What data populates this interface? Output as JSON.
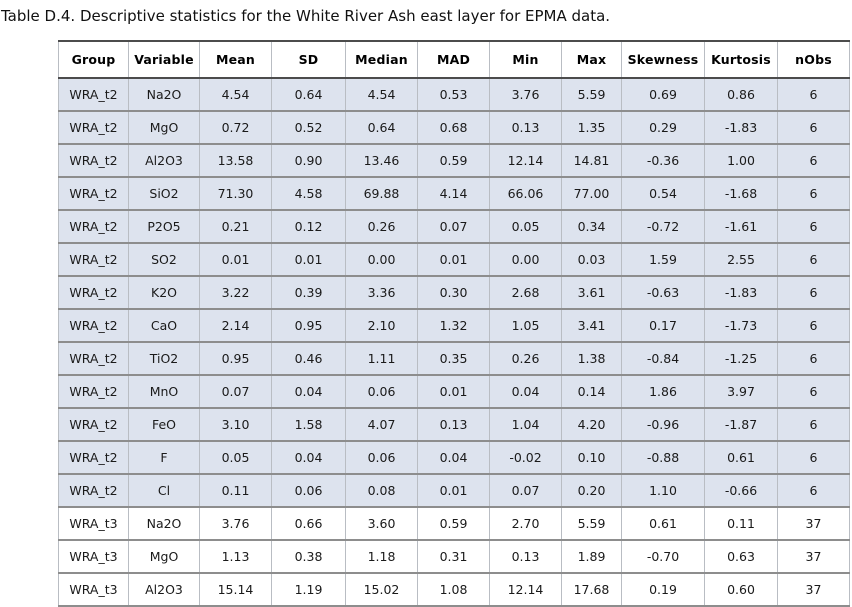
{
  "title": "Table D.4. Descriptive statistics for the White River Ash east layer for EPMA data.",
  "colors": {
    "stripe_row_bg": "#dde3ee",
    "plain_row_bg": "#ffffff",
    "header_rule": "#4c4c4c",
    "row_rule": "#8d8d8d",
    "column_rule": "#b9bdc3",
    "text": "#1a1a1a"
  },
  "table": {
    "columns": [
      "Group",
      "Variable",
      "Mean",
      "SD",
      "Median",
      "MAD",
      "Min",
      "Max",
      "Skewness",
      "Kurtosis",
      "nObs"
    ],
    "rows": [
      [
        "WRA_t2",
        "Na2O",
        "4.54",
        "0.64",
        "4.54",
        "0.53",
        "3.76",
        "5.59",
        "0.69",
        "0.86",
        "6"
      ],
      [
        "WRA_t2",
        "MgO",
        "0.72",
        "0.52",
        "0.64",
        "0.68",
        "0.13",
        "1.35",
        "0.29",
        "-1.83",
        "6"
      ],
      [
        "WRA_t2",
        "Al2O3",
        "13.58",
        "0.90",
        "13.46",
        "0.59",
        "12.14",
        "14.81",
        "-0.36",
        "1.00",
        "6"
      ],
      [
        "WRA_t2",
        "SiO2",
        "71.30",
        "4.58",
        "69.88",
        "4.14",
        "66.06",
        "77.00",
        "0.54",
        "-1.68",
        "6"
      ],
      [
        "WRA_t2",
        "P2O5",
        "0.21",
        "0.12",
        "0.26",
        "0.07",
        "0.05",
        "0.34",
        "-0.72",
        "-1.61",
        "6"
      ],
      [
        "WRA_t2",
        "SO2",
        "0.01",
        "0.01",
        "0.00",
        "0.01",
        "0.00",
        "0.03",
        "1.59",
        "2.55",
        "6"
      ],
      [
        "WRA_t2",
        "K2O",
        "3.22",
        "0.39",
        "3.36",
        "0.30",
        "2.68",
        "3.61",
        "-0.63",
        "-1.83",
        "6"
      ],
      [
        "WRA_t2",
        "CaO",
        "2.14",
        "0.95",
        "2.10",
        "1.32",
        "1.05",
        "3.41",
        "0.17",
        "-1.73",
        "6"
      ],
      [
        "WRA_t2",
        "TiO2",
        "0.95",
        "0.46",
        "1.11",
        "0.35",
        "0.26",
        "1.38",
        "-0.84",
        "-1.25",
        "6"
      ],
      [
        "WRA_t2",
        "MnO",
        "0.07",
        "0.04",
        "0.06",
        "0.01",
        "0.04",
        "0.14",
        "1.86",
        "3.97",
        "6"
      ],
      [
        "WRA_t2",
        "FeO",
        "3.10",
        "1.58",
        "4.07",
        "0.13",
        "1.04",
        "4.20",
        "-0.96",
        "-1.87",
        "6"
      ],
      [
        "WRA_t2",
        "F",
        "0.05",
        "0.04",
        "0.06",
        "0.04",
        "-0.02",
        "0.10",
        "-0.88",
        "0.61",
        "6"
      ],
      [
        "WRA_t2",
        "Cl",
        "0.11",
        "0.06",
        "0.08",
        "0.01",
        "0.07",
        "0.20",
        "1.10",
        "-0.66",
        "6"
      ],
      [
        "WRA_t3",
        "Na2O",
        "3.76",
        "0.66",
        "3.60",
        "0.59",
        "2.70",
        "5.59",
        "0.61",
        "0.11",
        "37"
      ],
      [
        "WRA_t3",
        "MgO",
        "1.13",
        "0.38",
        "1.18",
        "0.31",
        "0.13",
        "1.89",
        "-0.70",
        "0.63",
        "37"
      ],
      [
        "WRA_t3",
        "Al2O3",
        "15.14",
        "1.19",
        "15.02",
        "1.08",
        "12.14",
        "17.68",
        "0.19",
        "0.60",
        "37"
      ]
    ]
  }
}
